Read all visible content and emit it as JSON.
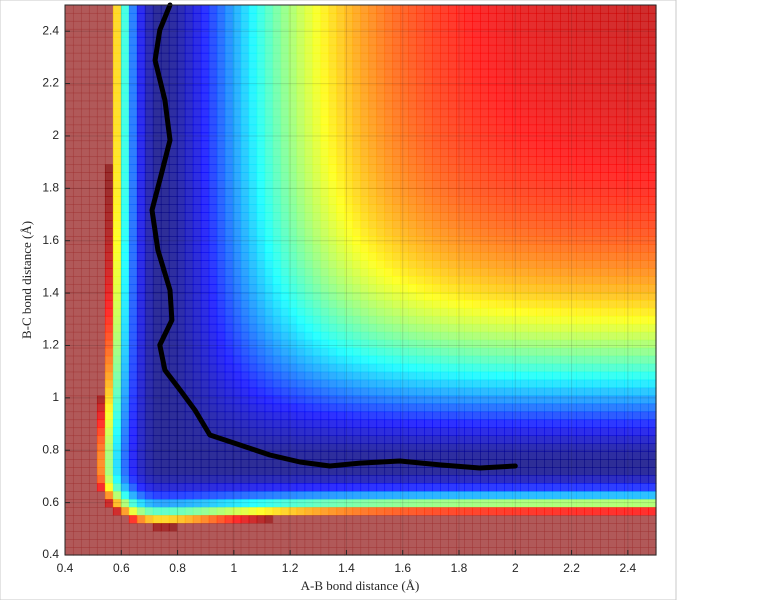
{
  "chart_data": {
    "type": "contour",
    "x_label": "A-B bond distance (Å)",
    "y_label": "B-C bond distance (Å)",
    "xlim": [
      0.4,
      2.5
    ],
    "ylim": [
      0.4,
      2.5
    ],
    "xticks": [
      0.4,
      0.6,
      0.8,
      1,
      1.2,
      1.4,
      1.6,
      1.8,
      2,
      2.2,
      2.4
    ],
    "yticks": [
      0.4,
      0.6,
      0.8,
      1,
      1.2,
      1.4,
      1.6,
      1.8,
      2,
      2.2,
      2.4
    ],
    "grid": true,
    "colormap": "jet",
    "color": "#000000",
    "x": [
      0.773,
      0.737,
      0.72,
      0.755,
      0.773,
      0.737,
      0.709,
      0.73,
      0.773,
      0.78,
      0.737,
      0.755,
      0.809,
      0.862,
      0.915,
      1.022,
      1.128,
      1.235,
      1.341,
      1.448,
      1.59,
      1.732,
      1.874,
      2.0
    ],
    "values": [
      2.5,
      2.404,
      2.289,
      2.137,
      1.984,
      1.831,
      1.717,
      1.564,
      1.411,
      1.297,
      1.202,
      1.106,
      1.03,
      0.953,
      0.858,
      0.82,
      0.782,
      0.755,
      0.74,
      0.751,
      0.759,
      0.744,
      0.732,
      0.74
    ]
  }
}
